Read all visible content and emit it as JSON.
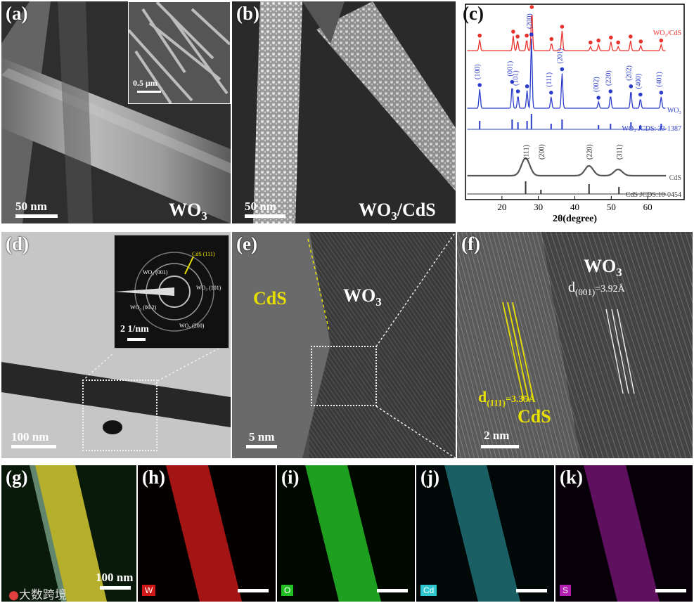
{
  "panels": {
    "a": {
      "label": "(a)",
      "scale": "50 nm",
      "material": "WO",
      "sub": "3",
      "inset_scale": "0.5 μm"
    },
    "b": {
      "label": "(b)",
      "scale": "50 nm",
      "material": "WO",
      "sub": "3",
      "material_tail": "/CdS"
    },
    "c": {
      "label": "(c)"
    },
    "d": {
      "label": "(d)",
      "scale": "100 nm",
      "inset_scale": "2 1/nm",
      "saed": {
        "cds": "CdS (111)",
        "wo001": "WO₃ (001)",
        "wo101": "WO₃ (101)",
        "wo002": "WO₃ (00.2)",
        "wo200": "WO₃ (200)"
      }
    },
    "e": {
      "label": "(e)",
      "scale": "5 nm",
      "cds": "CdS",
      "material": "WO",
      "sub": "3"
    },
    "f": {
      "label": "(f)",
      "scale": "2 nm",
      "material": "WO",
      "sub": "3",
      "d001_pre": "d",
      "d001_sub": "(001)",
      "d001_val": "=3.92Å",
      "d111_pre": "d",
      "d111_sub": "(111)",
      "d111_val": "=3.35Å",
      "cds": "CdS"
    },
    "g": {
      "label": "(g)",
      "scale": "100 nm"
    },
    "h": {
      "label": "(h)",
      "element": "W"
    },
    "i": {
      "label": "(i)",
      "element": "O"
    },
    "j": {
      "label": "(j)",
      "element": "Cd"
    },
    "k": {
      "label": "(k)",
      "element": "S"
    }
  },
  "watermark": "大数跨境",
  "colors": {
    "W": "#d01818",
    "O": "#22c022",
    "Cd": "#30c8d0",
    "S": "#b020b0",
    "overlay": "#c8c030"
  },
  "chart_data": {
    "type": "line",
    "xlabel": "2θ(degree)",
    "xlim": [
      10,
      70
    ],
    "xticks": [
      20,
      30,
      40,
      50,
      60
    ],
    "series": [
      {
        "name": "WO₃/CdS",
        "color": "#e8302a",
        "peaks": [
          [
            13.9,
            22
          ],
          [
            23.1,
            30
          ],
          [
            24.3,
            20
          ],
          [
            26.8,
            22
          ],
          [
            28.2,
            80
          ],
          [
            33.6,
            15
          ],
          [
            36.5,
            40
          ],
          [
            44.3,
            8
          ],
          [
            46.5,
            12
          ],
          [
            49.9,
            18
          ],
          [
            51.9,
            8
          ],
          [
            55.3,
            20
          ],
          [
            58.1,
            10
          ],
          [
            63.7,
            12
          ]
        ]
      },
      {
        "name": "WO₃",
        "color": "#2a3cc8",
        "peaks": [
          [
            13.9,
            30
          ],
          [
            22.8,
            35
          ],
          [
            24.4,
            20
          ],
          [
            26.9,
            28
          ],
          [
            28.1,
            110
          ],
          [
            33.5,
            18
          ],
          [
            36.5,
            55
          ],
          [
            46.5,
            10
          ],
          [
            49.8,
            20
          ],
          [
            55.4,
            28
          ],
          [
            58.0,
            15
          ],
          [
            63.7,
            18
          ]
        ]
      },
      {
        "name": "WO₃ JCDS: 33-1387",
        "color": "#2a3cc8",
        "sticks": [
          [
            13.9,
            12
          ],
          [
            22.8,
            14
          ],
          [
            24.4,
            10
          ],
          [
            26.9,
            12
          ],
          [
            28.1,
            22
          ],
          [
            33.5,
            8
          ],
          [
            36.5,
            14
          ],
          [
            46.5,
            6
          ],
          [
            49.8,
            8
          ],
          [
            55.4,
            10
          ],
          [
            58.0,
            6
          ],
          [
            63.7,
            8
          ]
        ]
      },
      {
        "name": "CdS",
        "color": "#555555",
        "broad": [
          [
            26.5,
            25
          ],
          [
            43.9,
            14
          ],
          [
            51.9,
            9
          ]
        ]
      },
      {
        "name": "CdS JCDS:10-0454",
        "color": "#333333",
        "sticks": [
          [
            26.5,
            18
          ],
          [
            30.7,
            6
          ],
          [
            43.9,
            14
          ],
          [
            52.1,
            10
          ]
        ]
      }
    ],
    "hkl_wo3": [
      "(100)",
      "(001)",
      "(101)",
      "(200)",
      "(111)",
      "(201)",
      "(002)",
      "(220)",
      "(202)",
      "(400)",
      "(401)"
    ],
    "hkl_cds": [
      "(111)",
      "(200)",
      "(220)",
      "(311)"
    ]
  }
}
